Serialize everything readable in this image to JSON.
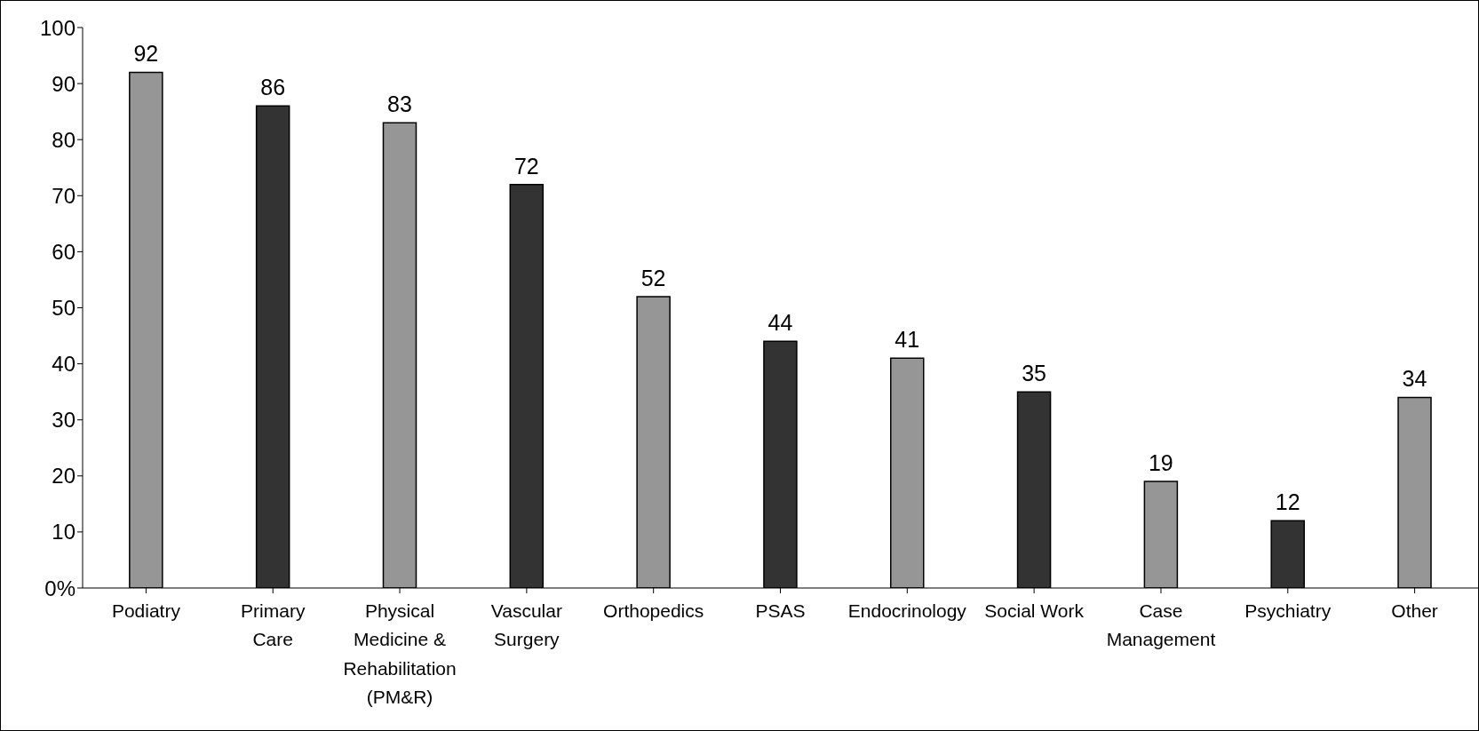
{
  "chart_data": {
    "type": "bar",
    "categories": [
      "Podiatry",
      "Primary Care",
      "Physical Medicine & Rehabilitation (PM&R)",
      "Vascular Surgery",
      "Orthopedics",
      "PSAS",
      "Endocrinology",
      "Social Work",
      "Case Management",
      "Psychiatry",
      "Other"
    ],
    "values": [
      92,
      86,
      83,
      72,
      52,
      44,
      41,
      35,
      19,
      12,
      34
    ],
    "colors": [
      "#969696",
      "#333333",
      "#969696",
      "#333333",
      "#969696",
      "#333333",
      "#969696",
      "#333333",
      "#969696",
      "#333333",
      "#969696"
    ],
    "ylim": [
      0,
      100
    ],
    "yticks": [
      {
        "value": 0,
        "label": "0%"
      },
      10,
      20,
      30,
      40,
      50,
      60,
      70,
      80,
      90,
      100
    ],
    "data_labels": true,
    "grid": false,
    "legend": false
  }
}
